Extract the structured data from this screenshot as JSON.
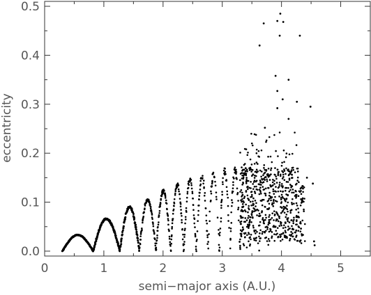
{
  "chart_data": {
    "type": "scatter",
    "title": "",
    "xlabel": "semi−major axis (A.U.)",
    "ylabel": "eccentricity",
    "xlim": [
      0,
      5.5
    ],
    "ylim": [
      -0.01,
      0.51
    ],
    "xticks": [
      0,
      1,
      2,
      3,
      4,
      5
    ],
    "xtick_labels": [
      "0",
      "1",
      "2",
      "3",
      "4",
      "5"
    ],
    "yticks": [
      0.0,
      0.1,
      0.2,
      0.3,
      0.4,
      0.5
    ],
    "ytick_labels": [
      "0.0",
      "0.1",
      "0.2",
      "0.3",
      "0.4",
      "0.5"
    ],
    "grid": false,
    "legend": "none",
    "marker_color": "#000000",
    "structure": {
      "arches": [
        {
          "a_start": 0.3,
          "a_end": 0.82,
          "peak_e": 0.033
        },
        {
          "a_start": 0.82,
          "a_end": 1.27,
          "peak_e": 0.066
        },
        {
          "a_start": 1.27,
          "a_end": 1.6,
          "peak_e": 0.09
        },
        {
          "a_start": 1.6,
          "a_end": 1.88,
          "peak_e": 0.105
        },
        {
          "a_start": 1.88,
          "a_end": 2.13,
          "peak_e": 0.123
        },
        {
          "a_start": 2.13,
          "a_end": 2.35,
          "peak_e": 0.135
        },
        {
          "a_start": 2.35,
          "a_end": 2.56,
          "peak_e": 0.145
        },
        {
          "a_start": 2.56,
          "a_end": 2.76,
          "peak_e": 0.153
        },
        {
          "a_start": 2.76,
          "a_end": 2.95,
          "peak_e": 0.158
        },
        {
          "a_start": 2.95,
          "a_end": 3.13,
          "peak_e": 0.162
        },
        {
          "a_start": 3.13,
          "a_end": 3.3,
          "peak_e": 0.166
        },
        {
          "a_start": 3.3,
          "a_end": 3.47,
          "peak_e": 0.17
        }
      ],
      "scatter_cloud": {
        "a_range": [
          3.3,
          4.4
        ],
        "e_range": [
          0.0,
          0.25
        ],
        "count": 700
      },
      "outliers": [
        {
          "x": 3.63,
          "y": 0.42
        },
        {
          "x": 3.7,
          "y": 0.465
        },
        {
          "x": 3.93,
          "y": 0.47
        },
        {
          "x": 3.98,
          "y": 0.485
        },
        {
          "x": 4.03,
          "y": 0.468
        },
        {
          "x": 4.31,
          "y": 0.44
        },
        {
          "x": 3.97,
          "y": 0.44
        },
        {
          "x": 4.12,
          "y": 0.35
        },
        {
          "x": 3.9,
          "y": 0.358
        },
        {
          "x": 3.93,
          "y": 0.327
        },
        {
          "x": 4.02,
          "y": 0.31
        },
        {
          "x": 4.49,
          "y": 0.295
        },
        {
          "x": 4.26,
          "y": 0.305
        },
        {
          "x": 3.93,
          "y": 0.292
        },
        {
          "x": 4.12,
          "y": 0.27
        },
        {
          "x": 3.72,
          "y": 0.252
        },
        {
          "x": 4.55,
          "y": 0.02
        },
        {
          "x": 4.56,
          "y": 0.012
        },
        {
          "x": 4.53,
          "y": 0.138
        },
        {
          "x": 4.43,
          "y": 0.15
        }
      ]
    }
  }
}
